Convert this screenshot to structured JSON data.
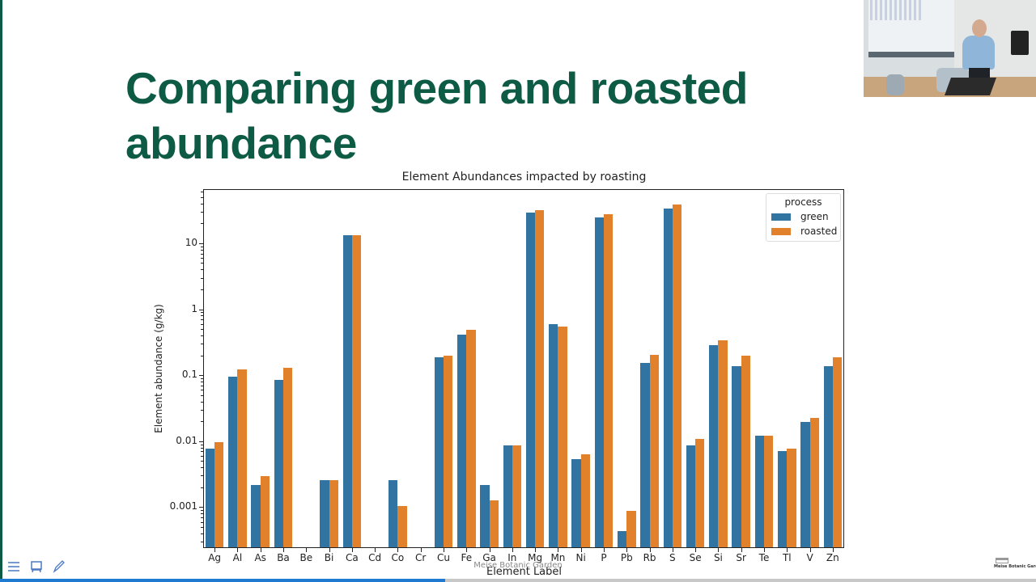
{
  "slide": {
    "title": "Comparing green and roasted abundance",
    "accent_color": "#0d5a45",
    "watermark": "Meise Botanic Garden",
    "logo_text": "Meise Botanic Garden",
    "progress_percent": 43
  },
  "toolbar": {
    "buttons": [
      {
        "name": "menu",
        "icon": "hamburger-menu-icon"
      },
      {
        "name": "presenter",
        "icon": "easel-icon"
      },
      {
        "name": "annotate",
        "icon": "pen-icon"
      }
    ]
  },
  "webcam": {
    "description": "Speaker presenting in lecture room"
  },
  "chart_data": {
    "type": "bar",
    "title": "Element Abundances impacted by roasting",
    "xlabel": "Element Label",
    "ylabel": "Element abundance (g/kg)",
    "yscale": "log",
    "ylim": [
      0.00024,
      66
    ],
    "yticks": [
      {
        "value": 10,
        "label": "10"
      },
      {
        "value": 1,
        "label": "1"
      },
      {
        "value": 0.1,
        "label": "0.1"
      },
      {
        "value": 0.01,
        "label": "0.01"
      },
      {
        "value": 0.001,
        "label": "0.001"
      }
    ],
    "legend": {
      "title": "process",
      "position": "upper right"
    },
    "grid": false,
    "categories": [
      "Ag",
      "Al",
      "As",
      "Ba",
      "Be",
      "Bi",
      "Ca",
      "Cd",
      "Co",
      "Cr",
      "Cu",
      "Fe",
      "Ga",
      "In",
      "Mg",
      "Mn",
      "Ni",
      "P",
      "Pb",
      "Rb",
      "S",
      "Se",
      "Si",
      "Sr",
      "Te",
      "Tl",
      "V",
      "Zn"
    ],
    "series": [
      {
        "name": "green",
        "color": "#3274a1",
        "values": [
          0.0075,
          0.092,
          0.0021,
          0.083,
          null,
          0.0025,
          13,
          null,
          0.0025,
          null,
          0.18,
          0.4,
          0.0021,
          0.0085,
          28,
          0.58,
          0.0052,
          24,
          0.00042,
          0.15,
          33,
          0.0085,
          0.28,
          0.135,
          0.0118,
          0.0068,
          0.019,
          0.133
        ]
      },
      {
        "name": "roasted",
        "color": "#e1812c",
        "values": [
          0.0095,
          0.118,
          0.0029,
          0.125,
          null,
          0.0025,
          13,
          null,
          0.001,
          null,
          0.19,
          0.47,
          0.00125,
          0.0085,
          31,
          0.53,
          0.0062,
          27,
          0.00085,
          0.2,
          38,
          0.0105,
          0.33,
          0.19,
          0.0118,
          0.0075,
          0.022,
          0.18
        ]
      }
    ]
  }
}
